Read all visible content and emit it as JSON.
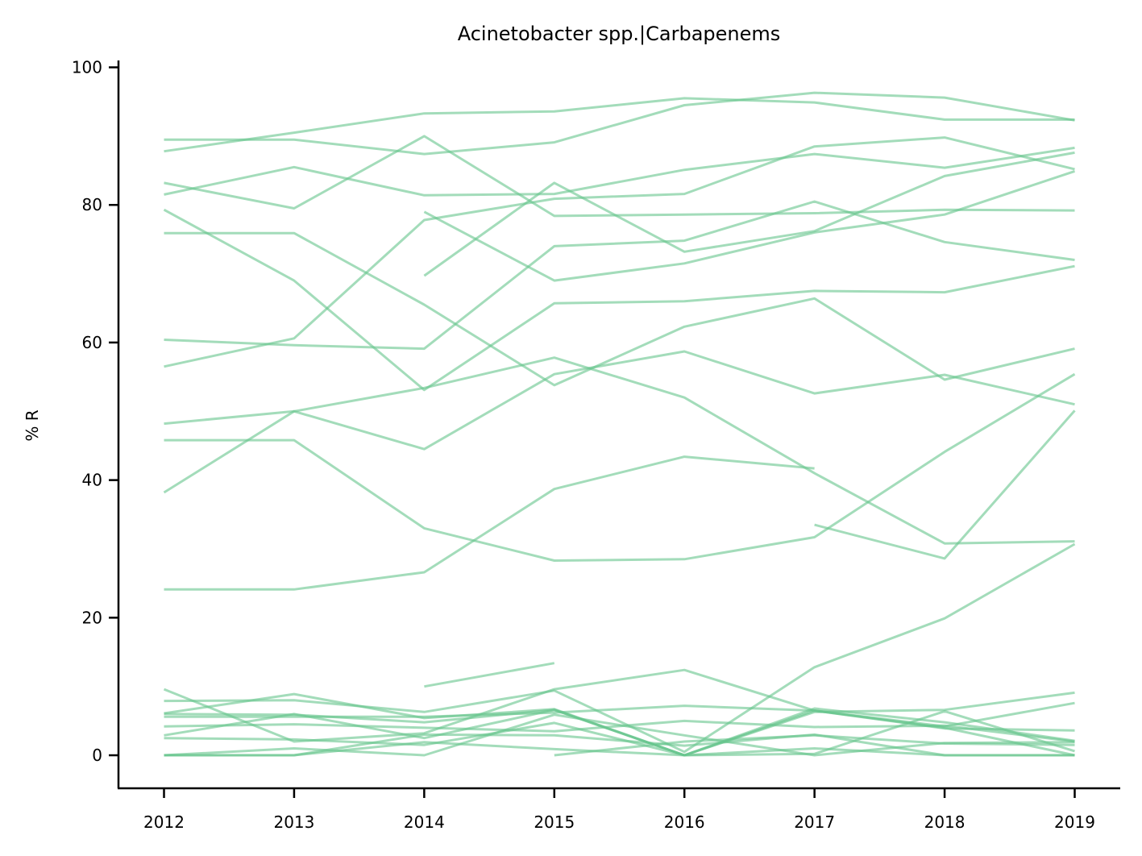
{
  "chart_data": {
    "type": "line",
    "title": "Acinetobacter spp.|Carbapenems",
    "xlabel": "",
    "ylabel": "% R",
    "x": [
      2012,
      2013,
      2014,
      2015,
      2016,
      2017,
      2018,
      2019
    ],
    "x_ticks": [
      "2012",
      "2013",
      "2014",
      "2015",
      "2016",
      "2017",
      "2018",
      "2019"
    ],
    "y_ticks": [
      "0",
      "20",
      "40",
      "60",
      "80",
      "100"
    ],
    "ylim": [
      -4.8,
      101
    ],
    "xlim": [
      2011.65,
      2019.35
    ],
    "grid": false,
    "legend": "none",
    "line_color": "#66c48c",
    "line_opacity": 0.6,
    "series": [
      {
        "values": [
          87.8,
          90.5,
          93.3,
          93.6,
          95.5,
          94.9,
          92.4,
          92.4
        ]
      },
      {
        "values": [
          89.5,
          89.5,
          87.4,
          89.1,
          94.5,
          96.3,
          95.6,
          92.3
        ]
      },
      {
        "values": [
          83.2,
          79.5,
          90.0,
          78.4,
          78.6,
          78.8,
          79.3,
          79.2
        ]
      },
      {
        "values": [
          81.5,
          85.5,
          81.4,
          81.6,
          85.1,
          87.4,
          85.4,
          88.3
        ]
      },
      {
        "values": [
          79.3,
          69.0,
          53.1,
          65.7,
          66.0,
          67.5,
          67.3,
          71.1
        ]
      },
      {
        "values": [
          75.9,
          75.9,
          65.5,
          53.8,
          62.3,
          66.4,
          54.6,
          59.1
        ]
      },
      {
        "values": [
          60.4,
          59.6,
          59.1,
          74.0,
          74.8,
          80.5,
          74.6,
          72.0
        ]
      },
      {
        "values": [
          56.5,
          60.6,
          77.8,
          80.9,
          81.6,
          88.5,
          89.8,
          85.2
        ]
      },
      {
        "values": [
          48.2,
          50.0,
          53.4,
          57.8,
          52.0,
          41.0,
          30.8,
          31.1
        ]
      },
      {
        "values": [
          45.8,
          45.8,
          33.0,
          28.3,
          28.5,
          31.7,
          44.1,
          55.4
        ]
      },
      {
        "values": [
          38.2,
          50.0,
          44.5,
          55.4,
          58.7,
          52.6,
          55.3,
          51.0
        ]
      },
      {
        "values": [
          24.1,
          24.1,
          26.6,
          38.7,
          43.4,
          41.7,
          null,
          null
        ]
      },
      {
        "values": [
          null,
          null,
          79.0,
          69.0,
          71.5,
          76.0,
          78.6,
          84.9
        ]
      },
      {
        "values": [
          null,
          null,
          69.7,
          83.2,
          73.2,
          76.2,
          84.2,
          87.6
        ]
      },
      {
        "values": [
          null,
          null,
          null,
          null,
          null,
          33.5,
          28.6,
          50.1
        ]
      },
      {
        "values": [
          null,
          null,
          10.0,
          13.4,
          null,
          null,
          null,
          null
        ]
      },
      {
        "values": [
          9.6,
          2.0,
          3.2,
          9.6,
          12.4,
          6.5,
          4.0,
          0.0
        ]
      },
      {
        "values": [
          7.9,
          8.0,
          6.3,
          9.4,
          0.5,
          12.8,
          19.9,
          30.7
        ]
      },
      {
        "values": [
          6.1,
          8.9,
          5.4,
          6.7,
          0.0,
          6.3,
          6.6,
          9.1
        ]
      },
      {
        "values": [
          5.6,
          5.6,
          5.6,
          6.2,
          7.2,
          6.5,
          3.9,
          3.6
        ]
      },
      {
        "values": [
          4.2,
          4.5,
          4.0,
          3.5,
          5.0,
          4.1,
          4.3,
          2.0
        ]
      },
      {
        "values": [
          2.9,
          6.0,
          2.5,
          6.6,
          0.0,
          6.8,
          4.8,
          2.1
        ]
      },
      {
        "values": [
          2.5,
          2.3,
          1.5,
          4.7,
          0.0,
          0.2,
          6.4,
          0.6
        ]
      },
      {
        "values": [
          0.0,
          1.0,
          0.0,
          5.9,
          2.9,
          0.0,
          1.8,
          1.9
        ]
      },
      {
        "values": [
          0.0,
          0.0,
          3.0,
          2.9,
          1.4,
          3.0,
          0.0,
          0.0
        ]
      },
      {
        "values": [
          0.0,
          0.0,
          1.9,
          0.9,
          0.0,
          1.0,
          0.0,
          0.0
        ]
      },
      {
        "values": [
          null,
          null,
          null,
          0.0,
          2.0,
          2.9,
          1.7,
          1.5
        ]
      },
      {
        "values": [
          6.0,
          5.9,
          4.8,
          6.6,
          0.0,
          6.5,
          4.2,
          7.6
        ]
      }
    ]
  }
}
